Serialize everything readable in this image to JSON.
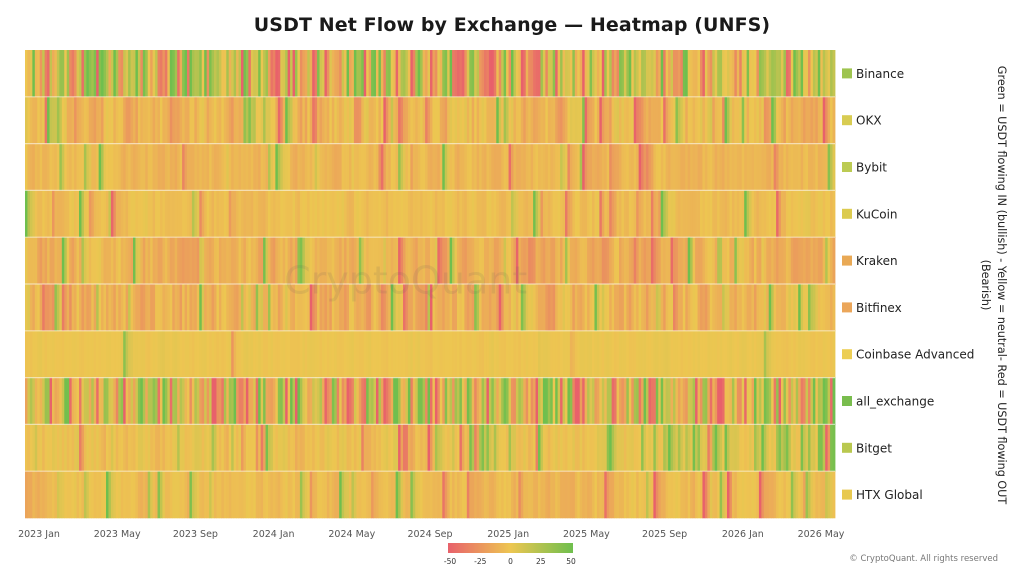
{
  "chart_data": {
    "type": "heatmap",
    "title": "USDT Net Flow by Exchange — Heatmap (UNFS)",
    "rows": [
      "Binance",
      "OKX",
      "Bybit",
      "KuCoin",
      "Kraken",
      "Bitfinex",
      "Coinbase Advanced",
      "all_exchange",
      "Bitget",
      "HTX Global"
    ],
    "row_legend_colors": [
      "#9ec44f",
      "#d8cc52",
      "#bccb53",
      "#dccb4f",
      "#e9a955",
      "#eba65a",
      "#ecce54",
      "#79bd4e",
      "#b9c84f",
      "#e8c950"
    ],
    "x_ticks": [
      "2023 Jan",
      "2023 May",
      "2023 Sep",
      "2024 Jan",
      "2024 May",
      "2024 Sep",
      "2025 Jan",
      "2025 May",
      "2025 Sep",
      "2026 Jan",
      "2026 May"
    ],
    "x_range": [
      "2023 Jan",
      "2026 May"
    ],
    "colorscale": {
      "min": -50,
      "max": 50,
      "ticks": [
        "-50",
        "-25",
        "0",
        "25",
        "50"
      ],
      "colors": [
        "#e8616b",
        "#edc651",
        "#6fbf4e"
      ]
    },
    "row_profiles": {
      "Binance": "strongly mixed: frequent deep green and red cells",
      "OKX": "mostly yellow/orange with scattered red and green",
      "Bybit": "mostly yellow with occasional orange",
      "KuCoin": "mostly yellow, slight orange",
      "Kraken": "yellow-orange with scattered orange",
      "Bitfinex": "mixed orange with some green",
      "Coinbase Advanced": "near-neutral yellow",
      "all_exchange": "strongly mixed: deep green and red blocks",
      "Bitget": "yellow with scattered green in 2025-2026",
      "HTX Global": "mostly yellow, scattered orange/red"
    },
    "ylabel_note": "Green = USDT flowing IN (bullish) - Yellow = neutral- Red = USDT flowing OUT (Bearish)"
  },
  "copyright": "© CryptoQuant. All rights reserved",
  "watermark": "CryptoQuant"
}
